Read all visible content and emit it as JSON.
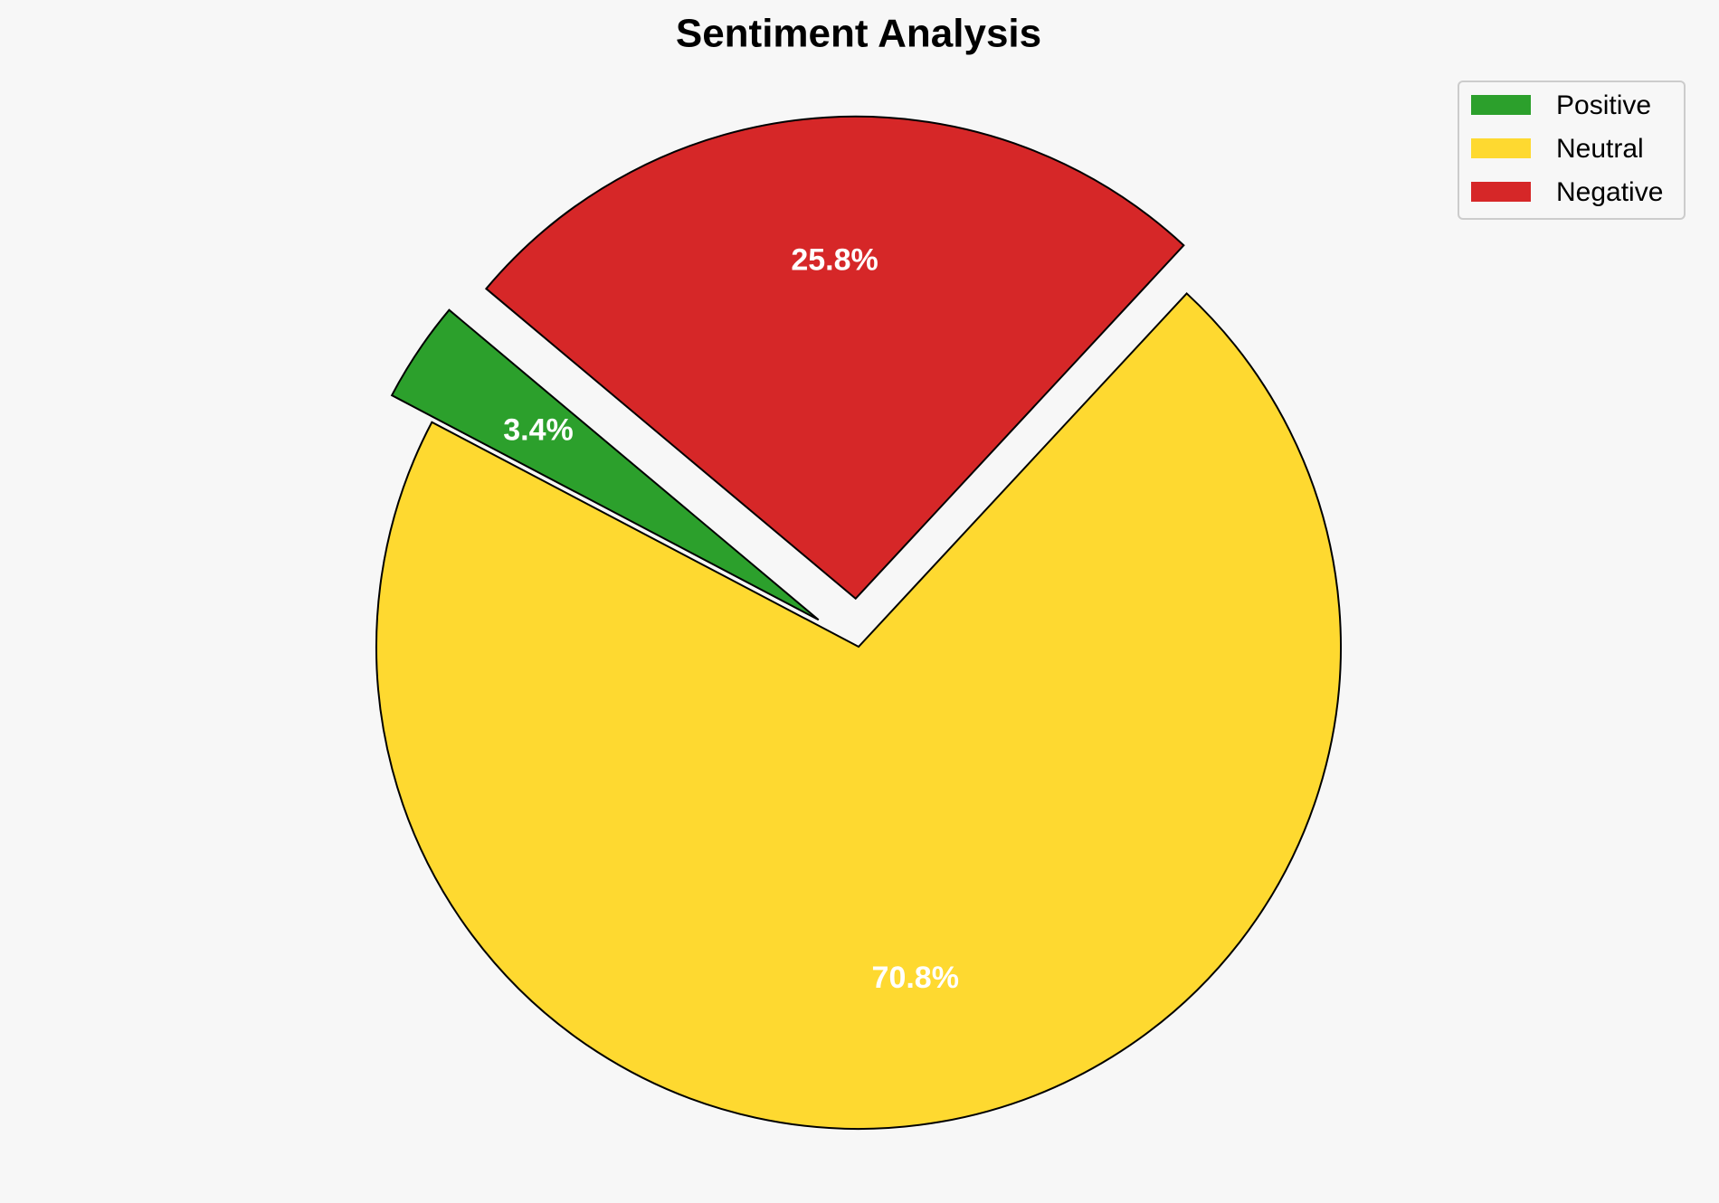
{
  "chart_data": {
    "type": "pie",
    "title": "Sentiment Analysis",
    "categories": [
      "Positive",
      "Neutral",
      "Negative"
    ],
    "values": [
      3.4,
      70.8,
      25.8
    ],
    "value_labels": [
      "3.4%",
      "70.8%",
      "25.8%"
    ],
    "colors": [
      "#2ca02c",
      "#fed930",
      "#d62728"
    ],
    "legend": "upper right"
  }
}
